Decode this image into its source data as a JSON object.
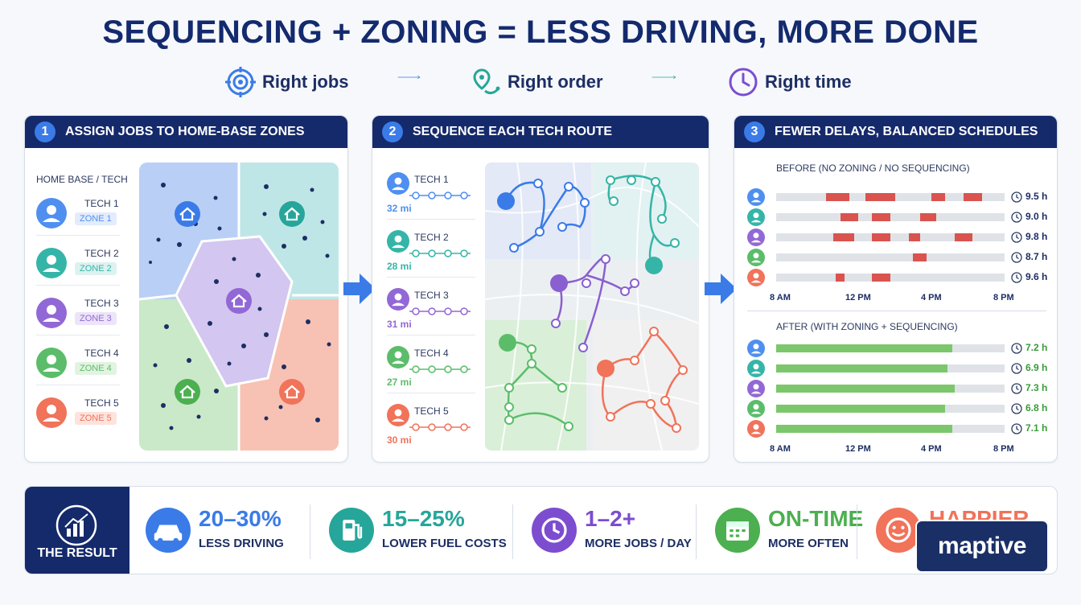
{
  "title": "SEQUENCING + ZONING = LESS DRIVING, MORE DONE",
  "flow": [
    "Right jobs",
    "Right order",
    "Right time"
  ],
  "colors": {
    "navy": "#152a6b",
    "blue": "#4f8ff0",
    "teal": "#35b5a8",
    "purple": "#9268d6",
    "green": "#5bbd6a",
    "red": "#f0735a"
  },
  "panel1": {
    "number": "1",
    "title": "ASSIGN JOBS TO HOME-BASE ZONES",
    "subtitle": "HOME BASE / TECH",
    "techs": [
      {
        "name": "TECH 1",
        "zone": "ZONE 1"
      },
      {
        "name": "TECH 2",
        "zone": "ZONE 2"
      },
      {
        "name": "TECH 3",
        "zone": "ZONE 3"
      },
      {
        "name": "TECH 4",
        "zone": "ZONE 4"
      },
      {
        "name": "TECH 5",
        "zone": "ZONE 5"
      }
    ]
  },
  "panel2": {
    "number": "2",
    "title": "SEQUENCE EACH TECH ROUTE",
    "techs": [
      {
        "name": "TECH 1",
        "miles": "32 mi"
      },
      {
        "name": "TECH 2",
        "miles": "28 mi"
      },
      {
        "name": "TECH 3",
        "miles": "31 mi"
      },
      {
        "name": "TECH 4",
        "miles": "27 mi"
      },
      {
        "name": "TECH 5",
        "miles": "30 mi"
      }
    ]
  },
  "panel3": {
    "number": "3",
    "title": "FEWER DELAYS, BALANCED SCHEDULES",
    "before_label": "BEFORE (NO ZONING / NO SEQUENCING)",
    "after_label": "AFTER (WITH ZONING + SEQUENCING)",
    "axis": [
      "8 AM",
      "12 PM",
      "4 PM",
      "8 PM"
    ],
    "before_hours": [
      "9.5 h",
      "9.0 h",
      "9.8 h",
      "8.7 h",
      "9.6 h"
    ],
    "after_hours": [
      "7.2 h",
      "6.9 h",
      "7.3 h",
      "6.8 h",
      "7.1 h"
    ]
  },
  "result": {
    "label": "THE RESULT",
    "stats": [
      {
        "value": "20–30%",
        "label": "LESS DRIVING",
        "icon": "car-icon",
        "color": "#3a7be8"
      },
      {
        "value": "15–25%",
        "label": "LOWER FUEL COSTS",
        "icon": "fuel-icon",
        "color": "#26a69a"
      },
      {
        "value": "1–2+",
        "label": "MORE JOBS / DAY",
        "icon": "clock-icon",
        "color": "#7c4dcf"
      },
      {
        "value": "ON-TIME",
        "label": "MORE OFTEN",
        "icon": "calendar-icon",
        "color": "#4caf50"
      },
      {
        "value": "HAPPIER",
        "label": "",
        "icon": "smile-icon",
        "color": "#f0735a"
      }
    ]
  },
  "brand": "maptive"
}
